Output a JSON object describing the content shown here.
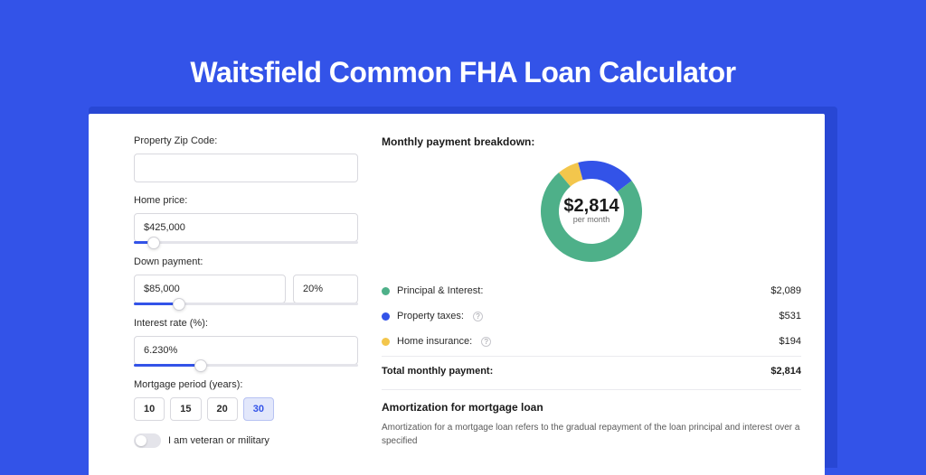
{
  "page": {
    "title": "Waitsfield Common FHA Loan Calculator",
    "colors": {
      "page_bg": "#3353e8",
      "card_shadow": "#2847d4",
      "card_bg": "#ffffff",
      "input_border": "#d8d8de",
      "slider_track": "#e4e4ea",
      "slider_fill": "#3353e8",
      "text": "#2a2a2a",
      "muted": "#6a6a6a"
    }
  },
  "form": {
    "zip": {
      "label": "Property Zip Code:",
      "value": ""
    },
    "home_price": {
      "label": "Home price:",
      "value": "$425,000",
      "slider_pct": 9
    },
    "down_payment": {
      "label": "Down payment:",
      "value": "$85,000",
      "pct": "20%",
      "slider_pct": 20
    },
    "interest_rate": {
      "label": "Interest rate (%):",
      "value": "6.230%",
      "slider_pct": 30
    },
    "mortgage_period": {
      "label": "Mortgage period (years):",
      "options": [
        "10",
        "15",
        "20",
        "30"
      ],
      "selected_index": 3
    },
    "veteran": {
      "label": "I am veteran or military",
      "checked": false
    }
  },
  "breakdown": {
    "title": "Monthly payment breakdown:",
    "chart": {
      "type": "donut",
      "center_value": "$2,814",
      "center_sub": "per month",
      "outer_radius": 56,
      "inner_radius": 36,
      "bg": "#ffffff",
      "slices": [
        {
          "name": "Principal & Interest",
          "value": 2089,
          "pct": 0.742,
          "color": "#4eb089"
        },
        {
          "name": "Property taxes",
          "value": 531,
          "pct": 0.189,
          "color": "#3353e8"
        },
        {
          "name": "Home insurance",
          "value": 194,
          "pct": 0.069,
          "color": "#f3c64c"
        }
      ]
    },
    "legend": [
      {
        "dot": "#4eb089",
        "label": "Principal & Interest:",
        "info": false,
        "value": "$2,089"
      },
      {
        "dot": "#3353e8",
        "label": "Property taxes:",
        "info": true,
        "value": "$531"
      },
      {
        "dot": "#f3c64c",
        "label": "Home insurance:",
        "info": true,
        "value": "$194"
      }
    ],
    "total": {
      "label": "Total monthly payment:",
      "value": "$2,814"
    }
  },
  "amortization": {
    "title": "Amortization for mortgage loan",
    "body": "Amortization for a mortgage loan refers to the gradual repayment of the loan principal and interest over a specified"
  }
}
